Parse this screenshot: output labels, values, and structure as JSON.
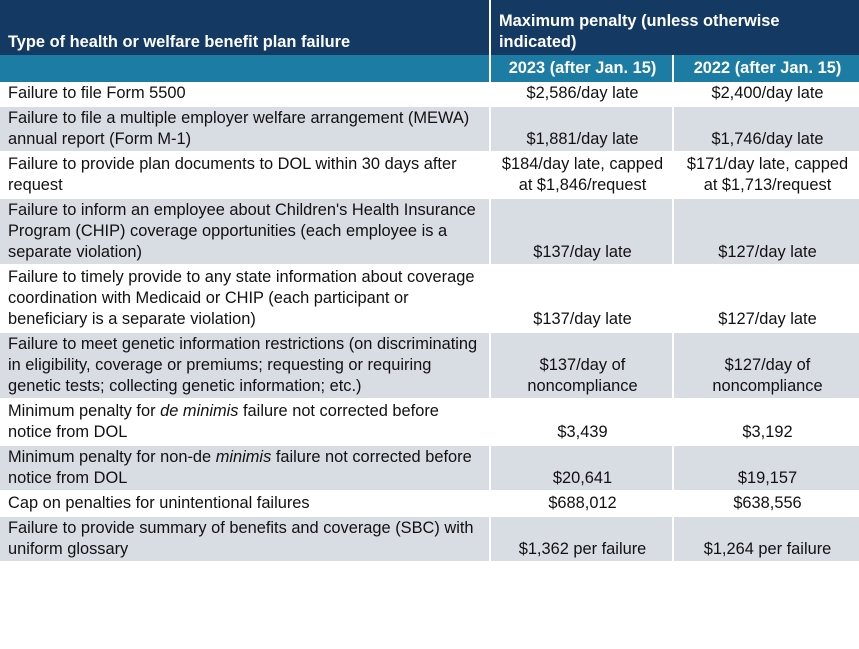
{
  "table": {
    "header": {
      "failure_type": "Type of health or welfare benefit plan failure",
      "max_penalty": "Maximum penalty (unless otherwise indicated)",
      "years": [
        "2023 (after Jan. 15)",
        "2022 (after Jan. 15)"
      ]
    },
    "rows": [
      {
        "failure": [
          "Failure to file Form 5500"
        ],
        "y2023": "$2,586/day late",
        "y2022": "$2,400/day late"
      },
      {
        "failure": [
          "Failure to file a multiple employer welfare arrangement (MEWA) annual report (Form M-1)"
        ],
        "y2023": "$1,881/day late",
        "y2022": "$1,746/day late"
      },
      {
        "failure": [
          "Failure to provide plan documents to DOL within 30 days after request"
        ],
        "y2023": "$184/day late, capped at $1,846/request",
        "y2022": "$171/day late, capped at $1,713/request"
      },
      {
        "failure": [
          "Failure to inform an employee about Children's Health Insurance Program (CHIP) coverage opportunities (each employee is a separate violation)"
        ],
        "y2023": "$137/day late",
        "y2022": "$127/day late"
      },
      {
        "failure": [
          "Failure to timely provide to any state information about coverage coordination with Medicaid or CHIP (each participant or beneficiary is a separate violation)"
        ],
        "y2023": "$137/day late",
        "y2022": "$127/day late"
      },
      {
        "failure": [
          "Failure to meet genetic information restrictions (on discriminating in eligibility, coverage or premiums; requesting or requiring genetic tests; collecting genetic information; etc.)"
        ],
        "y2023": "$137/day of noncompliance",
        "y2022": "$127/day of noncompliance"
      },
      {
        "failure": [
          "Minimum penalty for ",
          {
            "text": "de minimis",
            "style": "italic"
          },
          " failure not corrected before notice from DOL"
        ],
        "y2023": "$3,439",
        "y2022": "$3,192"
      },
      {
        "failure": [
          "Minimum penalty for non-de ",
          {
            "text": "minimis",
            "style": "italic"
          },
          " failure not corrected before notice from DOL"
        ],
        "y2023": "$20,641",
        "y2022": "$19,157"
      },
      {
        "failure": [
          "Cap on penalties for unintentional failures"
        ],
        "y2023": "$688,012",
        "y2022": "$638,556"
      },
      {
        "failure": [
          "Failure to provide summary of benefits and coverage (SBC) with uniform glossary"
        ],
        "y2023": "$1,362 per failure",
        "y2022": "$1,264 per failure"
      }
    ]
  }
}
